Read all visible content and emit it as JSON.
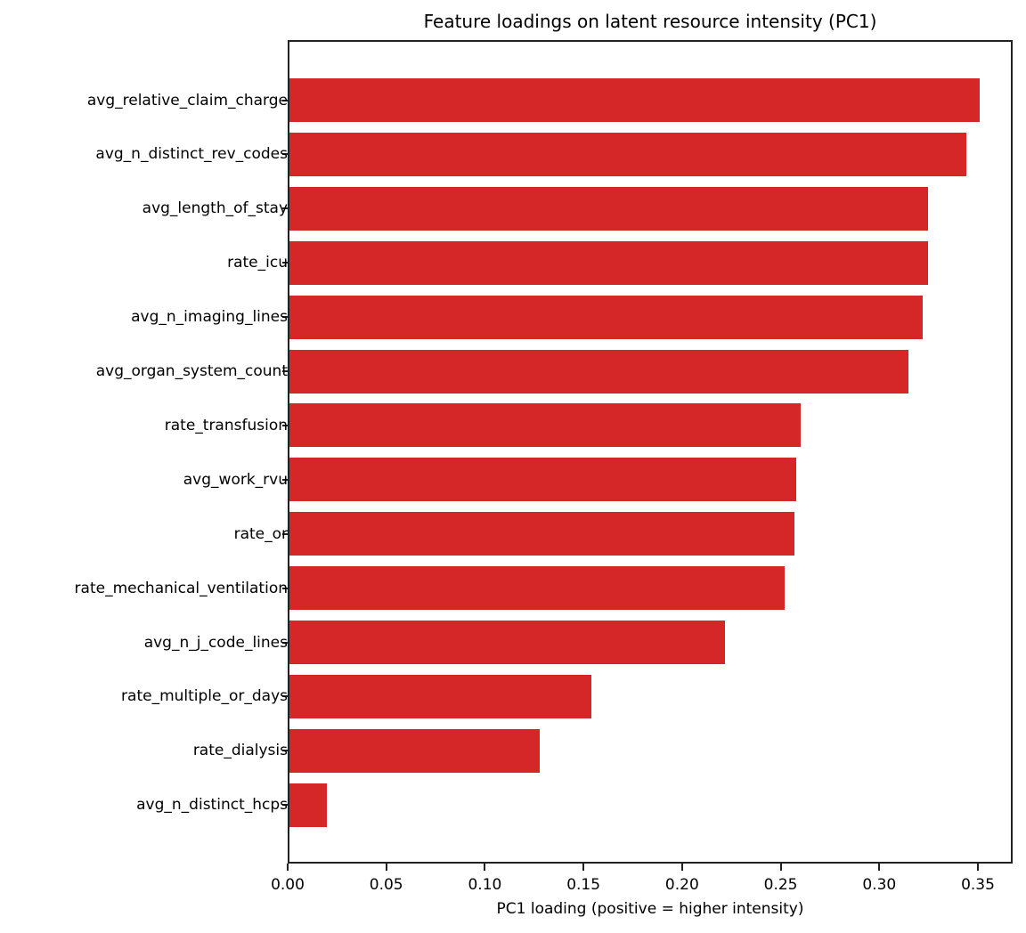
{
  "chart_data": {
    "type": "bar",
    "orientation": "horizontal",
    "title": "Feature loadings on latent resource intensity (PC1)",
    "xlabel": "PC1 loading (positive = higher intensity)",
    "ylabel": "",
    "xlim": [
      0.0,
      0.3676
    ],
    "xticks": [
      "0.00",
      "0.05",
      "0.10",
      "0.15",
      "0.20",
      "0.25",
      "0.30",
      "0.35"
    ],
    "xtick_values": [
      0.0,
      0.05,
      0.1,
      0.15,
      0.2,
      0.25,
      0.3,
      0.35
    ],
    "grid": false,
    "legend": null,
    "color": "#d62728",
    "categories": [
      "avg_relative_claim_charge",
      "avg_n_distinct_rev_codes",
      "avg_length_of_stay",
      "rate_icu",
      "avg_n_imaging_lines",
      "avg_organ_system_count",
      "rate_transfusion",
      "avg_work_rvu",
      "rate_or",
      "rate_mechanical_ventilation",
      "avg_n_j_code_lines",
      "rate_multiple_or_days",
      "rate_dialysis",
      "avg_n_distinct_hcps"
    ],
    "values": [
      0.35,
      0.343,
      0.324,
      0.324,
      0.321,
      0.314,
      0.259,
      0.257,
      0.256,
      0.251,
      0.221,
      0.153,
      0.127,
      0.019
    ]
  }
}
